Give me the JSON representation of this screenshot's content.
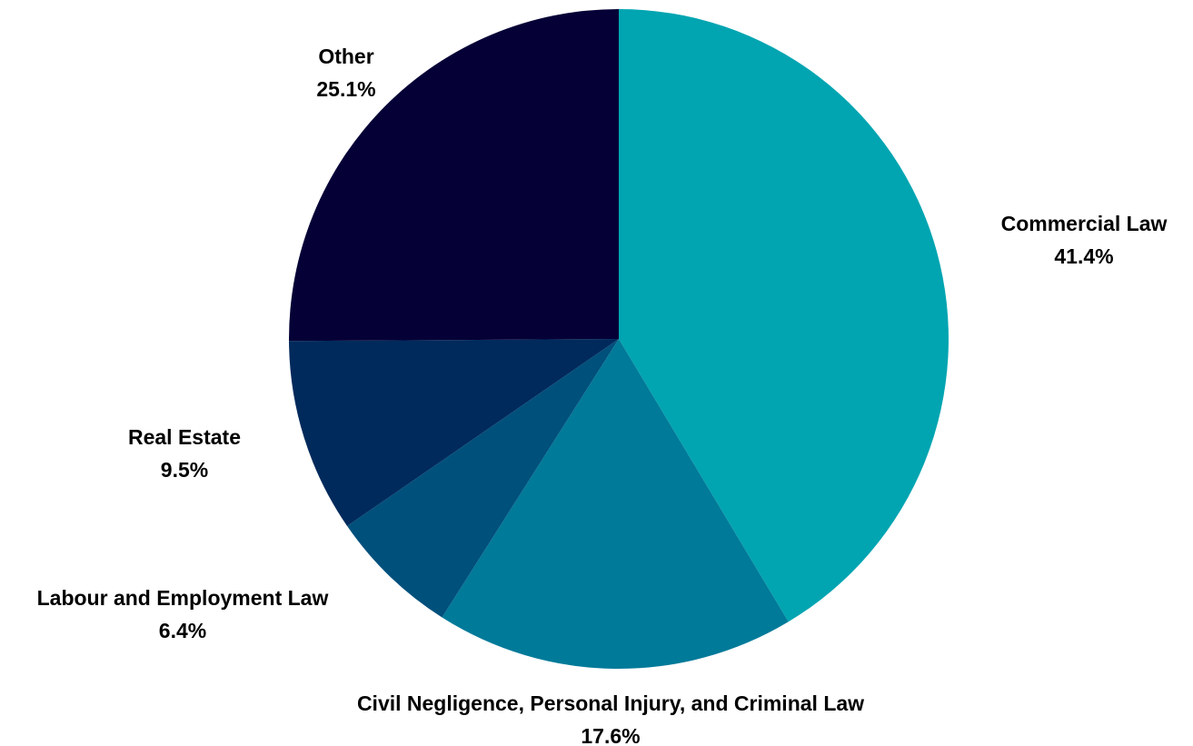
{
  "chart_data": {
    "type": "pie",
    "start_angle": "12 o'clock",
    "direction": "clockwise",
    "legend": "none",
    "slices": [
      {
        "name": "Commercial Law",
        "value": 41.4,
        "label": "41.4%",
        "color": "#00A5B1"
      },
      {
        "name": "Civil Negligence, Personal Injury, and Criminal Law",
        "value": 17.6,
        "label": "17.6%",
        "color": "#007A99"
      },
      {
        "name": "Labour and Employment Law",
        "value": 6.4,
        "label": "6.4%",
        "color": "#00507C"
      },
      {
        "name": "Real Estate",
        "value": 9.5,
        "label": "9.5%",
        "color": "#002A5C"
      },
      {
        "name": "Other",
        "value": 25.1,
        "label": "25.1%",
        "color": "#050036"
      }
    ]
  }
}
